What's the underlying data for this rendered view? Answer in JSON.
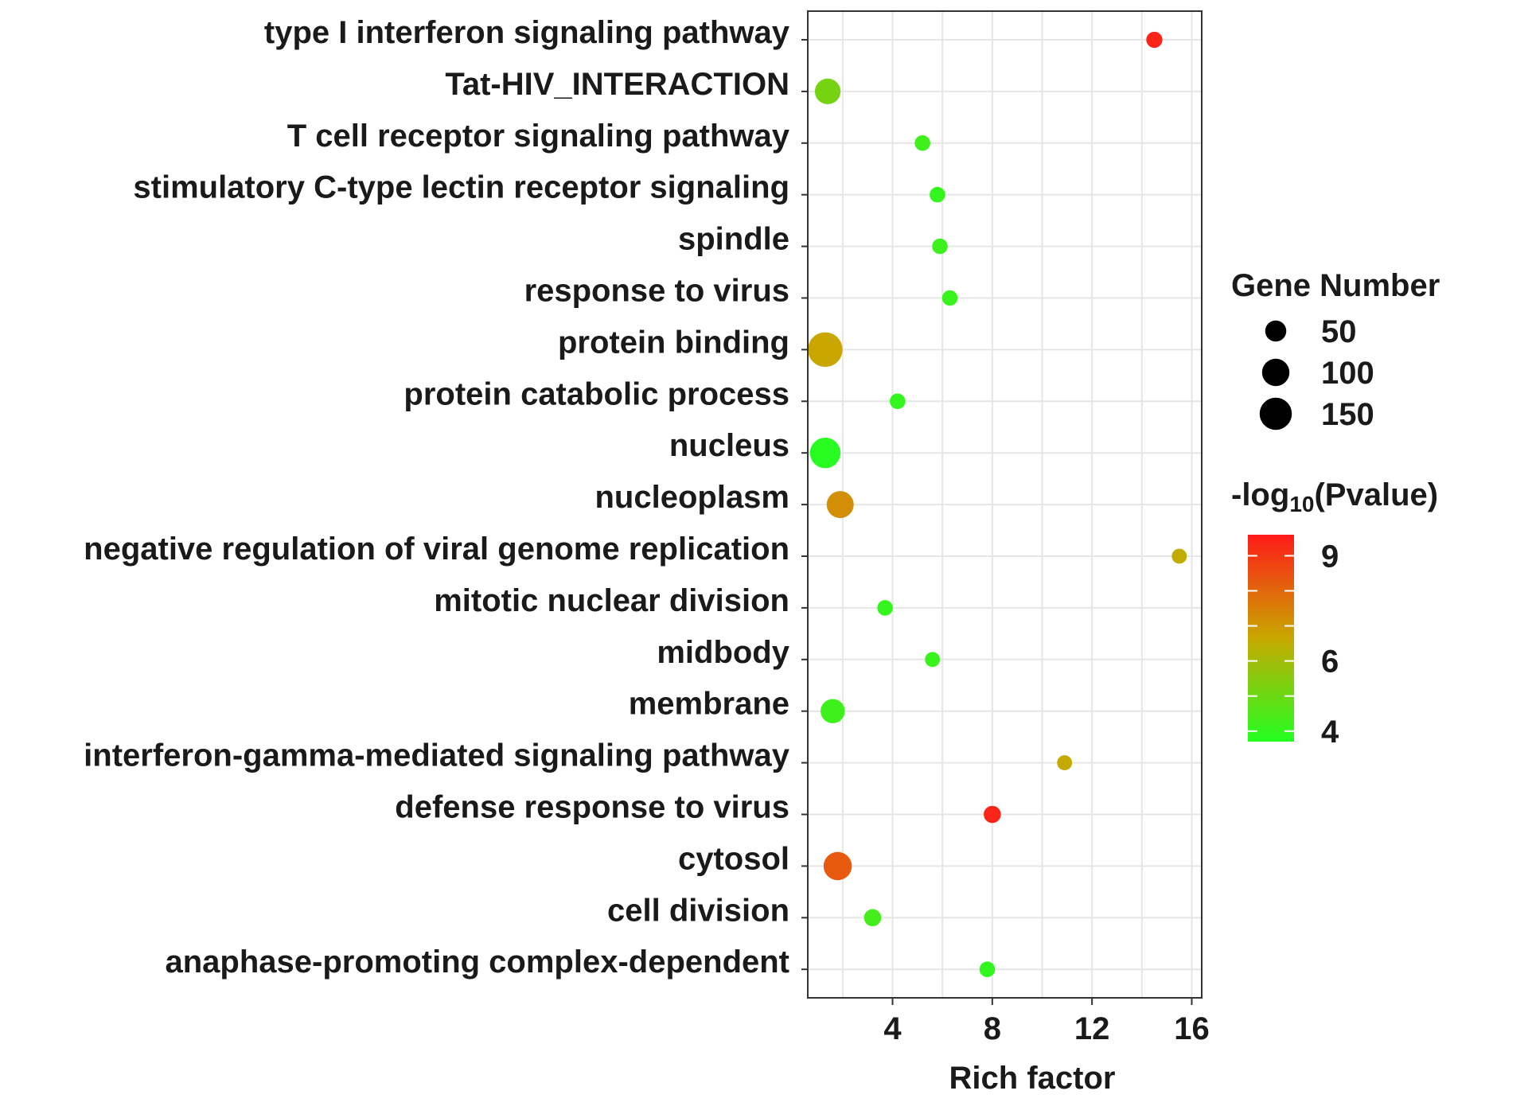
{
  "chart_data": {
    "type": "scatter",
    "subtype": "bubble",
    "title": "",
    "xlabel": "Rich factor",
    "ylabel": "",
    "xlim": [
      0.6,
      16.4
    ],
    "xticks": [
      4,
      8,
      12,
      16
    ],
    "grid": true,
    "points": [
      {
        "term": "type I interferon signaling pathway",
        "rich_factor": 14.5,
        "gene_number": 18,
        "neg_log10_p": 9.4
      },
      {
        "term": "Tat-HIV_INTERACTION",
        "rich_factor": 1.4,
        "gene_number": 70,
        "neg_log10_p": 5.2
      },
      {
        "term": "T cell receptor signaling pathway",
        "rich_factor": 5.2,
        "gene_number": 16,
        "neg_log10_p": 4.2
      },
      {
        "term": "stimulatory C-type lectin receptor signaling",
        "rich_factor": 5.8,
        "gene_number": 16,
        "neg_log10_p": 4.0
      },
      {
        "term": "spindle",
        "rich_factor": 5.9,
        "gene_number": 16,
        "neg_log10_p": 4.2
      },
      {
        "term": "response to virus",
        "rich_factor": 6.3,
        "gene_number": 16,
        "neg_log10_p": 4.1
      },
      {
        "term": "protein binding",
        "rich_factor": 1.3,
        "gene_number": 150,
        "neg_log10_p": 6.7
      },
      {
        "term": "protein catabolic process",
        "rich_factor": 4.2,
        "gene_number": 16,
        "neg_log10_p": 4.0
      },
      {
        "term": "nucleus",
        "rich_factor": 1.3,
        "gene_number": 110,
        "neg_log10_p": 3.8
      },
      {
        "term": "nucleoplasm",
        "rich_factor": 1.9,
        "gene_number": 80,
        "neg_log10_p": 7.2
      },
      {
        "term": "negative regulation of viral genome replication",
        "rich_factor": 15.5,
        "gene_number": 14,
        "neg_log10_p": 6.5
      },
      {
        "term": "mitotic nuclear division",
        "rich_factor": 3.7,
        "gene_number": 16,
        "neg_log10_p": 4.0
      },
      {
        "term": "midbody",
        "rich_factor": 5.6,
        "gene_number": 14,
        "neg_log10_p": 4.1
      },
      {
        "term": "membrane",
        "rich_factor": 1.6,
        "gene_number": 60,
        "neg_log10_p": 4.2
      },
      {
        "term": "interferon-gamma-mediated signaling pathway",
        "rich_factor": 10.9,
        "gene_number": 14,
        "neg_log10_p": 6.6
      },
      {
        "term": "defense response to virus",
        "rich_factor": 8.0,
        "gene_number": 22,
        "neg_log10_p": 9.4
      },
      {
        "term": "cytosol",
        "rich_factor": 1.8,
        "gene_number": 90,
        "neg_log10_p": 8.3
      },
      {
        "term": "cell division",
        "rich_factor": 3.2,
        "gene_number": 22,
        "neg_log10_p": 4.3
      },
      {
        "term": "anaphase-promoting complex-dependent",
        "rich_factor": 7.8,
        "gene_number": 16,
        "neg_log10_p": 4.0
      }
    ],
    "size_legend": {
      "title": "Gene Number",
      "entries": [
        50,
        100,
        150
      ]
    },
    "color_legend": {
      "title_prefix": "-log",
      "title_subscript": "10",
      "title_suffix": "(Pvalue)",
      "ticks": [
        9,
        6,
        4
      ],
      "range": [
        3.7,
        9.6
      ],
      "colors": {
        "low": "#22ff22",
        "mid": "#c8a800",
        "high": "#ff1a1a"
      }
    }
  }
}
